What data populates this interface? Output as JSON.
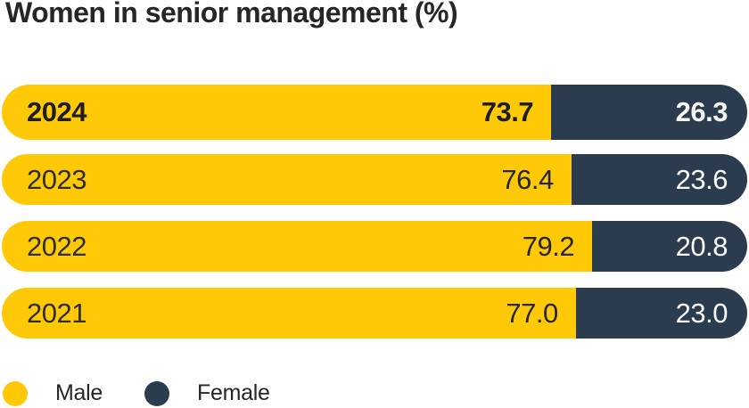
{
  "title": "Women in senior management (%)",
  "colors": {
    "male": "#FFC907",
    "female": "#2B3C4E",
    "title_text": "#262626",
    "value_text_on_male": "#262626",
    "value_text_on_female": "#FAFAFA",
    "background": "#FFFFFF"
  },
  "chart_data": {
    "type": "bar",
    "orientation": "horizontal",
    "stacked": true,
    "title": "Women in senior management (%)",
    "categories": [
      "2024",
      "2023",
      "2022",
      "2021"
    ],
    "series": [
      {
        "name": "Male",
        "color": "#FFC907",
        "values": [
          73.7,
          76.4,
          79.2,
          77.0
        ]
      },
      {
        "name": "Female",
        "color": "#2B3C4E",
        "values": [
          26.3,
          23.6,
          20.8,
          23.0
        ]
      }
    ],
    "value_labels": {
      "male": [
        "73.7",
        "76.4",
        "79.2",
        "77.0"
      ],
      "female": [
        "26.3",
        "23.6",
        "20.8",
        "23.0"
      ]
    },
    "xlim": [
      0,
      100
    ],
    "grid": false,
    "legend_position": "bottom-left",
    "highlighted_category": "2024"
  },
  "legend": {
    "male_label": "Male",
    "female_label": "Female"
  }
}
